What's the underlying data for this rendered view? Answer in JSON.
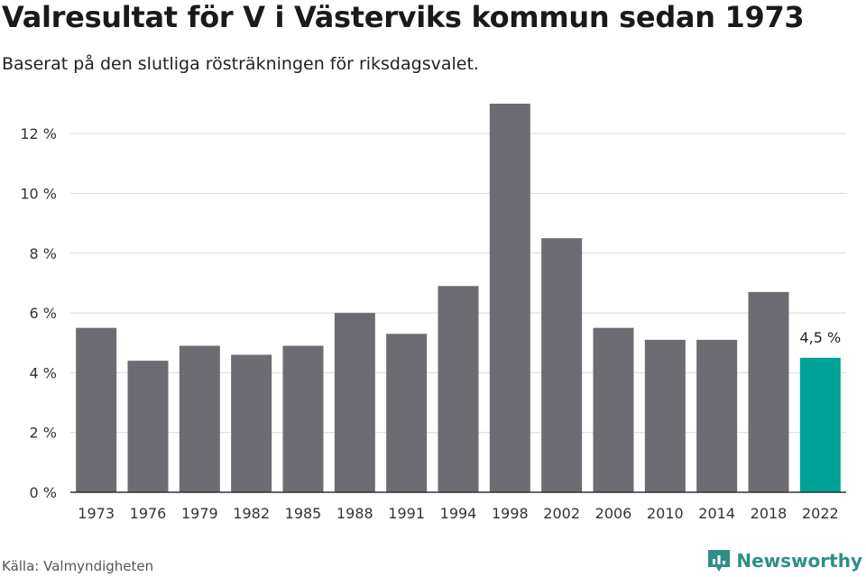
{
  "header": {
    "title": "Valresultat för V i Västerviks kommun sedan 1973",
    "subtitle": "Baserat på den slutliga rösträkningen för riksdagsvalet."
  },
  "footer": {
    "source": "Källa: Valmyndigheten",
    "brand": "Newsworthy"
  },
  "colors": {
    "bar": "#6d6c72",
    "highlight": "#00a398",
    "grid": "#d9d9d9",
    "axis": "#333333",
    "brand": "#2f8f86"
  },
  "chart_data": {
    "type": "bar",
    "categories": [
      "1973",
      "1976",
      "1979",
      "1982",
      "1985",
      "1988",
      "1991",
      "1994",
      "1998",
      "2002",
      "2006",
      "2010",
      "2014",
      "2018",
      "2022"
    ],
    "values": [
      5.5,
      4.4,
      4.9,
      4.6,
      4.9,
      6.0,
      5.3,
      6.9,
      13.0,
      8.5,
      5.5,
      5.1,
      5.1,
      6.7,
      4.5
    ],
    "highlight_index": 14,
    "data_labels": [
      {
        "index": 14,
        "text": "4,5 %"
      }
    ],
    "yticks": [
      0,
      2,
      4,
      6,
      8,
      10,
      12
    ],
    "ytick_labels": [
      "0 %",
      "2 %",
      "4 %",
      "6 %",
      "8 %",
      "10 %",
      "12 %"
    ],
    "ylim": [
      0,
      13
    ],
    "grid": true,
    "legend": "none"
  }
}
